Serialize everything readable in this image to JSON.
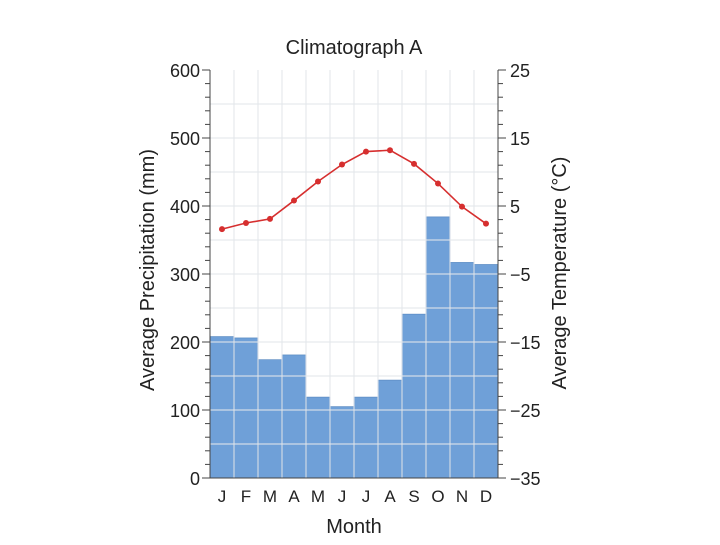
{
  "chart_data": {
    "type": "bar",
    "title": "Climatograph A",
    "xlabel": "Month",
    "ylabel_left": "Average Precipitation (mm)",
    "ylabel_right": "Average Temperature (°C)",
    "categories": [
      "J",
      "F",
      "M",
      "A",
      "M",
      "J",
      "J",
      "A",
      "S",
      "O",
      "N",
      "D"
    ],
    "ylim_left": [
      0,
      600
    ],
    "ylim_right": [
      -35,
      25
    ],
    "yticks_left": [
      0,
      100,
      200,
      300,
      400,
      500,
      600
    ],
    "yticks_right": [
      "−35",
      "−25",
      "−15",
      "−5",
      "5",
      "15",
      "25"
    ],
    "series": [
      {
        "type": "bar",
        "axis": "left",
        "values": [
          208,
          206,
          174,
          181,
          119,
          105,
          119,
          144,
          241,
          384,
          317,
          314
        ],
        "color": "#6fa0d8"
      },
      {
        "type": "line",
        "axis": "right",
        "values": [
          1.6,
          2.5,
          3.1,
          5.8,
          8.6,
          11.1,
          13.0,
          13.2,
          11.2,
          8.3,
          4.9,
          2.4
        ],
        "color": "#d62f2f"
      }
    ],
    "grid": true
  }
}
